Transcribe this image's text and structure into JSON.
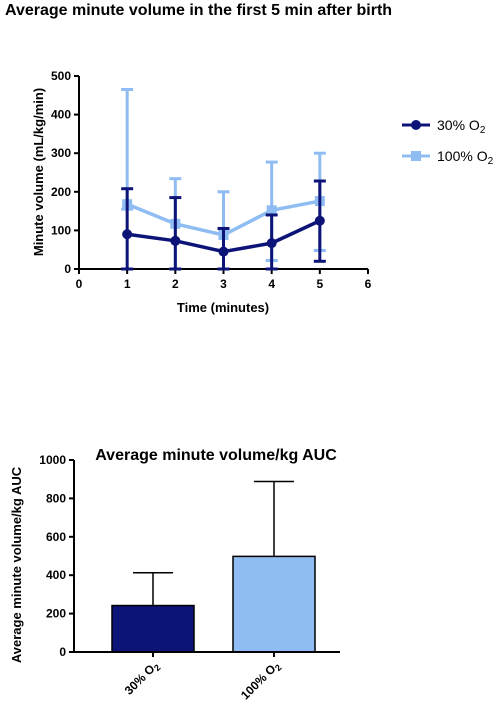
{
  "colors": {
    "dark": "#0d1478",
    "light": "#8fbcf2"
  },
  "chart_data": [
    {
      "type": "line",
      "title": "Average minute volume in the first 5 min after birth",
      "xlabel": "Time (minutes)",
      "ylabel": "Minute volume (mL/kg/min)",
      "xlim": [
        0,
        6
      ],
      "ylim": [
        0,
        500
      ],
      "xticks": [
        "0",
        "1",
        "2",
        "3",
        "4",
        "5",
        "6"
      ],
      "yticks": [
        "0",
        "100",
        "200",
        "300",
        "400",
        "500"
      ],
      "x": [
        1,
        2,
        3,
        4,
        5
      ],
      "legend_position": "top-right",
      "series": [
        {
          "name": "100% O",
          "sub": "2",
          "color": "#8fbcf2",
          "marker": "square",
          "values": [
            168,
            117,
            88,
            152,
            176
          ],
          "err_upper": [
            465,
            234,
            200,
            277,
            300
          ],
          "err_lower": [
            155,
            0,
            0,
            22,
            48
          ]
        },
        {
          "name": "30% O",
          "sub": "2",
          "color": "#0d1478",
          "marker": "circle",
          "values": [
            90,
            73,
            45,
            67,
            125
          ],
          "err_upper": [
            208,
            185,
            105,
            140,
            228
          ],
          "err_lower": [
            0,
            0,
            0,
            0,
            20
          ]
        }
      ]
    },
    {
      "type": "bar",
      "title": "Average minute volume/kg AUC",
      "xlabel": "",
      "ylabel": "Average minute volume/kg AUC",
      "ylim": [
        0,
        1000
      ],
      "yticks": [
        "0",
        "200",
        "400",
        "600",
        "800",
        "1000"
      ],
      "categories": [
        {
          "main": "30% O",
          "sub": "2"
        },
        {
          "main": "100% O",
          "sub": "2"
        }
      ],
      "values": [
        242,
        498
      ],
      "err_upper": [
        413,
        888
      ],
      "colors": [
        "#0d1478",
        "#8fbcf2"
      ]
    }
  ]
}
